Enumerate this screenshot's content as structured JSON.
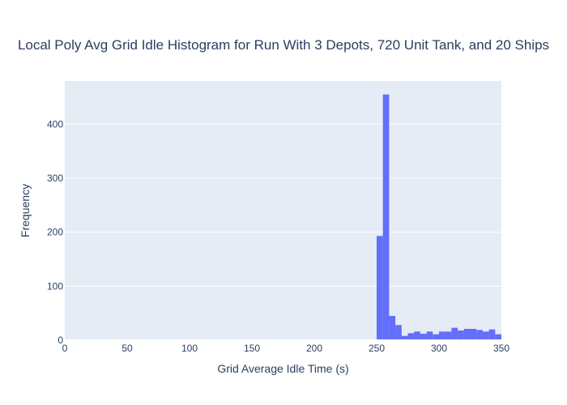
{
  "chart_data": {
    "type": "bar",
    "title": "Local Poly Avg Grid Idle Histogram for Run With 3 Depots, 720 Unit Tank, and 20 Ships",
    "xlabel": "Grid Average Idle Time (s)",
    "ylabel": "Frequency",
    "xlim": [
      0,
      350
    ],
    "ylim": [
      0,
      480
    ],
    "x_ticks": [
      0,
      50,
      100,
      150,
      200,
      250,
      300,
      350
    ],
    "y_ticks": [
      0,
      100,
      200,
      300,
      400
    ],
    "bin_width": 5,
    "bin_starts": [
      250,
      255,
      260,
      265,
      270,
      275,
      280,
      285,
      290,
      295,
      300,
      305,
      310,
      315,
      320,
      325,
      330,
      335,
      340,
      345,
      350
    ],
    "values": [
      193,
      455,
      45,
      28,
      8,
      13,
      16,
      12,
      16,
      11,
      16,
      16,
      23,
      18,
      21,
      21,
      19,
      16,
      20,
      11,
      4
    ],
    "bar_color": "#636efa",
    "plot_bgcolor": "#e5ecf6",
    "grid": true
  }
}
